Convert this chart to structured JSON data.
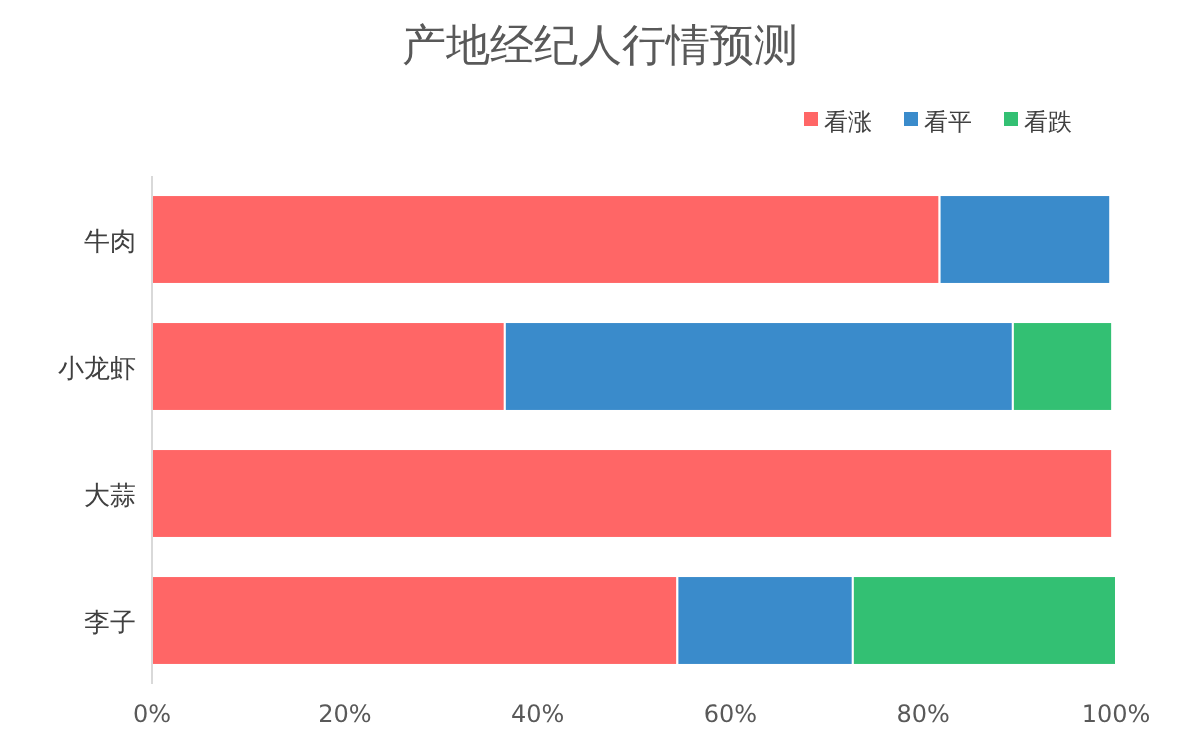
{
  "chart_data": {
    "type": "bar",
    "orientation": "horizontal",
    "stacked": true,
    "title": "产地经纪人行情预测",
    "categories": [
      "牛肉",
      "小龙虾",
      "大蒜",
      "李子"
    ],
    "series": [
      {
        "name": "看涨",
        "color": "#ff6666",
        "values": [
          81.7,
          36.6,
          99.6,
          54.5
        ]
      },
      {
        "name": "看平",
        "color": "#3a8bcb",
        "values": [
          17.7,
          52.7,
          null,
          18.2
        ]
      },
      {
        "name": "看跌",
        "color": "#33c073",
        "values": [
          null,
          10.3,
          null,
          27.3
        ]
      }
    ],
    "xlim": [
      0,
      100
    ],
    "xticks": [
      {
        "value": 0,
        "label": "0%"
      },
      {
        "value": 20,
        "label": "20%"
      },
      {
        "value": 40,
        "label": "40%"
      },
      {
        "value": 60,
        "label": "60%"
      },
      {
        "value": 80,
        "label": "80%"
      },
      {
        "value": 100,
        "label": "100%"
      }
    ],
    "legend": "top right"
  }
}
